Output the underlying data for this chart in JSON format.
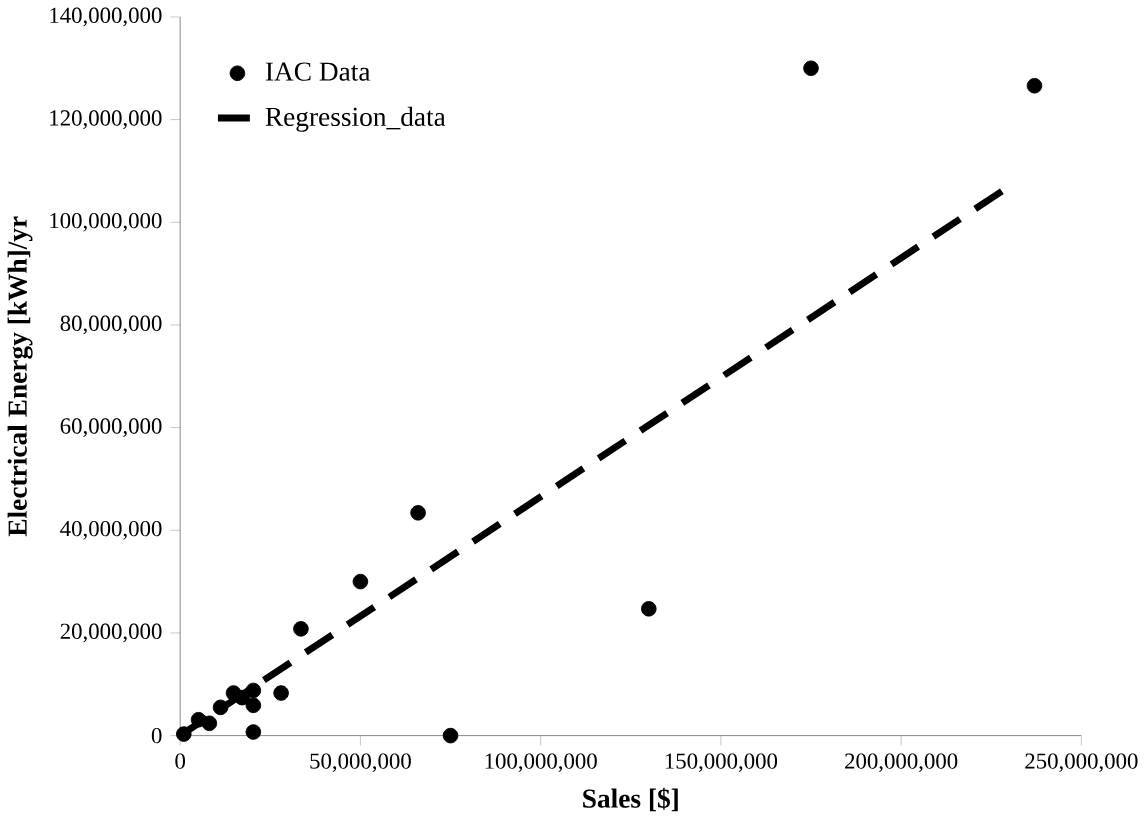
{
  "chart_data": {
    "type": "scatter",
    "xlabel": "Sales [$]",
    "ylabel": "Electrical Energy [kWh]/yr",
    "xlim": [
      0,
      250000000
    ],
    "ylim": [
      0,
      140000000
    ],
    "xticks": [
      0,
      {
        "value": 50000000,
        "label": "50,000,000"
      },
      {
        "value": 100000000,
        "label": "100,000,000"
      },
      {
        "value": 150000000,
        "label": "150,000,000"
      },
      {
        "value": 200000000,
        "label": "200,000,000"
      },
      {
        "value": 250000000,
        "label": "250,000,000"
      }
    ],
    "yticks": [
      0,
      {
        "value": 20000000,
        "label": "20,000,000"
      },
      {
        "value": 40000000,
        "label": "40,000,000"
      },
      {
        "value": 60000000,
        "label": "60,000,000"
      },
      {
        "value": 80000000,
        "label": "80,000,000"
      },
      {
        "value": 100000000,
        "label": "100,000,000"
      },
      {
        "value": 120000000,
        "label": "120,000,000"
      },
      {
        "value": 140000000,
        "label": "140,000,000"
      }
    ],
    "grid": false,
    "legend": "top left",
    "series": [
      {
        "name": "IAC Data",
        "marker": "circle",
        "color": "#000000",
        "x": [
          175000000,
          237000000,
          66000000,
          50000000,
          130000000,
          33500000,
          28000000,
          20300000,
          75000000,
          20300000,
          20300000,
          14800000,
          11200000,
          8100000,
          5100000,
          1000000,
          17200000
        ],
        "values": [
          130000000,
          126600000,
          43400000,
          30000000,
          24700000,
          20800000,
          8300000,
          700000,
          0,
          8800000,
          5900000,
          8300000,
          5500000,
          2400000,
          3100000,
          300000,
          7400000
        ]
      },
      {
        "name": "Regression_data",
        "type": "line",
        "line_style": "dashed",
        "marker": "none",
        "color": "#000000",
        "x": [
          0,
          230000000
        ],
        "values": [
          0,
          107000000
        ]
      }
    ]
  }
}
